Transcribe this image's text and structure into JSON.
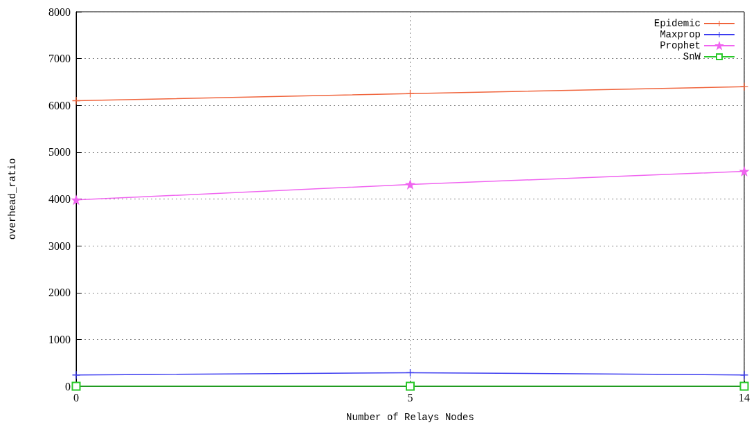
{
  "chart_data": {
    "type": "line",
    "xlabel": "Number of Relays Nodes",
    "ylabel": "overhead_ratio",
    "categories": [
      "0",
      "5",
      "14"
    ],
    "series": [
      {
        "name": "Epidemic",
        "color": "#f0643c",
        "marker": "cross",
        "values": [
          6100,
          6250,
          6400
        ]
      },
      {
        "name": "Maxprop",
        "color": "#3c3cf0",
        "marker": "cross",
        "values": [
          240,
          290,
          240
        ]
      },
      {
        "name": "Prophet",
        "color": "#f064f0",
        "marker": "star",
        "values": [
          3980,
          4310,
          4590
        ]
      },
      {
        "name": "SnW",
        "color": "#28c828",
        "marker": "square",
        "values": [
          0,
          0,
          0
        ]
      }
    ],
    "ylim": [
      0,
      8000
    ],
    "yticks": [
      0,
      1000,
      2000,
      3000,
      4000,
      5000,
      6000,
      7000,
      8000
    ],
    "grid": true,
    "legend": "top right",
    "line_style": "solid"
  }
}
